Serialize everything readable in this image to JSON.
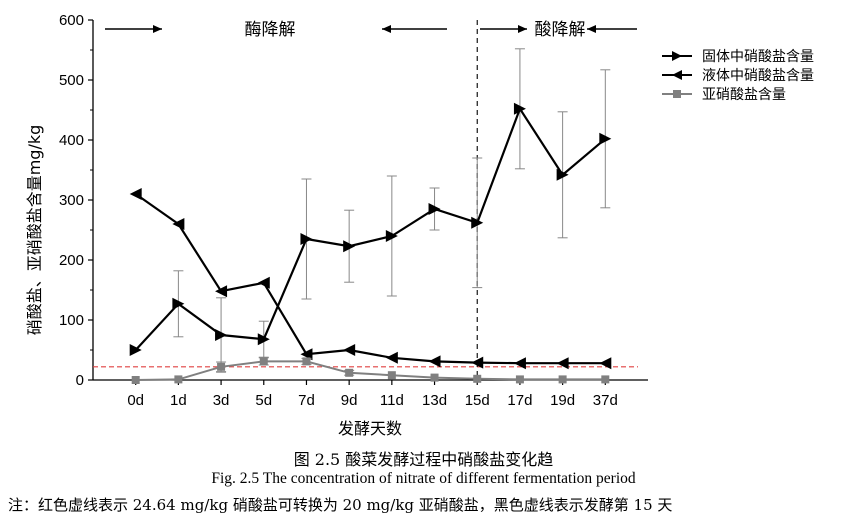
{
  "chart_data": {
    "type": "line",
    "xlabel": "发酵天数",
    "ylabel": "硝酸盐、亚硝酸盐含量mg/kg",
    "categories": [
      "0d",
      "1d",
      "3d",
      "5d",
      "7d",
      "9d",
      "11d",
      "13d",
      "15d",
      "17d",
      "19d",
      "37d"
    ],
    "ylim": [
      0,
      600
    ],
    "yticks": [
      0,
      100,
      200,
      300,
      400,
      500,
      600
    ],
    "series": [
      {
        "name": "固体中硝酸盐含量",
        "marker": "triangle-right",
        "color": "#000000",
        "values": [
          50,
          127,
          75,
          68,
          235,
          223,
          240,
          285,
          262,
          452,
          342,
          402
        ],
        "err": [
          0,
          55,
          62,
          30,
          100,
          60,
          100,
          35,
          108,
          100,
          105,
          115
        ]
      },
      {
        "name": "液体中硝酸盐含量",
        "marker": "triangle-left",
        "color": "#000000",
        "values": [
          310,
          260,
          148,
          162,
          43,
          50,
          37,
          31,
          29,
          28,
          28,
          28
        ],
        "err": [
          0,
          0,
          0,
          0,
          0,
          0,
          0,
          0,
          0,
          0,
          0,
          0
        ]
      },
      {
        "name": "亚硝酸盐含量",
        "marker": "square",
        "color": "#808080",
        "values": [
          0,
          1,
          22,
          31,
          31,
          12,
          8,
          4,
          2,
          1,
          1,
          1
        ],
        "err": [
          0,
          0,
          8,
          6,
          5,
          4,
          0,
          0,
          0,
          0,
          0,
          0
        ]
      }
    ],
    "reference_lines": [
      {
        "type": "horizontal",
        "y": 22,
        "color": "#e04040",
        "style": "dashed"
      },
      {
        "type": "vertical",
        "x": "15d",
        "color": "#000000",
        "style": "dashed"
      }
    ],
    "annotations": {
      "enzyme": "酶降解",
      "acid": "酸降解"
    }
  },
  "caption": {
    "cn": "图 2.5 酸菜发酵过程中硝酸盐变化趋",
    "en": "Fig. 2.5 The concentration of nitrate of different fermentation period",
    "note": "注：红色虚线表示 24.64 mg/kg 硝酸盐可转换为 20 mg/kg 亚硝酸盐，黑色虚线表示发酵第 15 天"
  }
}
